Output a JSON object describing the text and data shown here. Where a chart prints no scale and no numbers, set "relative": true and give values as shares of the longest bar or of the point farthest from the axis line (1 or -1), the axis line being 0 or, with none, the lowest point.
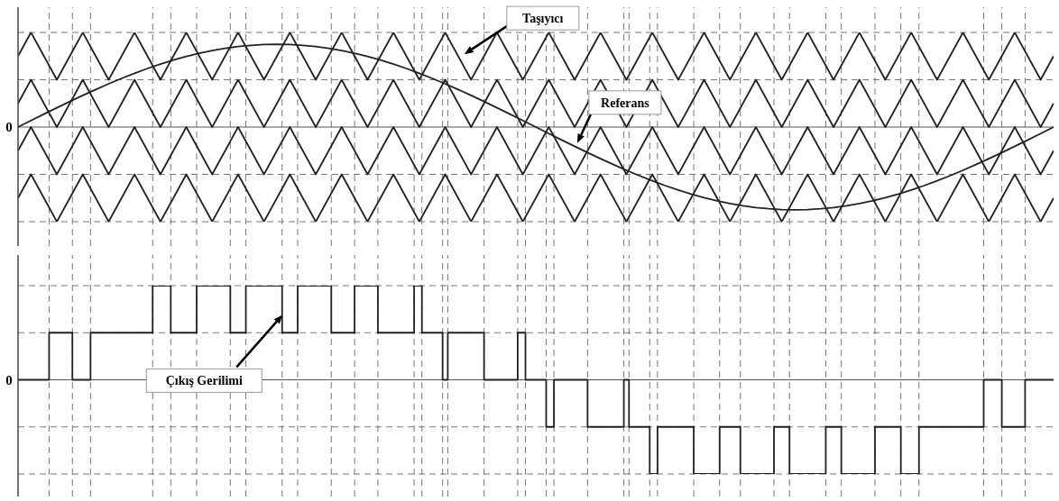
{
  "chart_data": [
    {
      "type": "line",
      "relative": true,
      "grid": true,
      "line_style": "solid",
      "marker": "none",
      "categories": [
        null,
        null,
        null,
        null,
        null,
        null,
        null,
        null,
        null,
        null,
        null,
        null,
        null,
        null,
        null,
        null,
        null,
        null,
        null,
        null,
        null,
        null,
        null,
        null,
        null,
        null,
        null,
        null,
        null,
        null,
        null,
        null,
        null,
        null,
        null,
        null,
        null,
        null,
        null,
        null,
        null,
        null,
        null,
        null,
        null,
        null,
        null,
        null,
        null,
        null,
        null,
        null,
        null,
        null,
        null,
        null,
        null,
        null,
        null,
        null,
        null,
        null,
        null,
        null,
        null,
        null,
        null,
        null,
        null,
        null,
        null,
        null,
        null,
        null,
        null,
        null,
        null,
        null,
        null,
        null,
        null
      ],
      "ref_lines": [
        {
          "axis": "y",
          "value": 0,
          "color": "#555555",
          "line_style": "solid"
        }
      ],
      "series": [
        {
          "color": "#222222",
          "values": [
            0.75,
            1,
            0.75,
            0.5,
            0.75,
            1,
            0.75,
            0.5,
            0.75,
            1,
            0.75,
            0.5,
            0.75,
            1,
            0.75,
            0.5,
            0.75,
            1,
            0.75,
            0.5,
            0.75,
            1,
            0.75,
            0.5,
            0.75,
            1,
            0.75,
            0.5,
            0.75,
            1,
            0.75,
            0.5,
            0.75,
            1,
            0.75,
            0.5,
            0.75,
            1,
            0.75,
            0.5,
            0.75,
            1,
            0.75,
            0.5,
            0.75,
            1,
            0.75,
            0.5,
            0.75,
            1,
            0.75,
            0.5,
            0.75,
            1,
            0.75,
            0.5,
            0.75,
            1,
            0.75,
            0.5,
            0.75,
            1,
            0.75,
            0.5,
            0.75,
            1,
            0.75,
            0.5,
            0.75,
            1,
            0.75,
            0.5,
            0.75,
            1,
            0.75,
            0.5,
            0.75,
            1,
            0.75,
            0.5,
            0.75
          ]
        },
        {
          "color": "#222222",
          "values": [
            0.25,
            0.5,
            0.25,
            0,
            0.25,
            0.5,
            0.25,
            0,
            0.25,
            0.5,
            0.25,
            0,
            0.25,
            0.5,
            0.25,
            0,
            0.25,
            0.5,
            0.25,
            0,
            0.25,
            0.5,
            0.25,
            0,
            0.25,
            0.5,
            0.25,
            0,
            0.25,
            0.5,
            0.25,
            0,
            0.25,
            0.5,
            0.25,
            0,
            0.25,
            0.5,
            0.25,
            0,
            0.25,
            0.5,
            0.25,
            0,
            0.25,
            0.5,
            null,
            0,
            null,
            0.5,
            0.25,
            0,
            0.25,
            0.5,
            0.25,
            0,
            0.25,
            0.5,
            0.25,
            0,
            0.25,
            0.5,
            0.25,
            0,
            0.25,
            0.5,
            0.25,
            0,
            0.25,
            0.5,
            0.25,
            0,
            0.25,
            0.5,
            0.25,
            0,
            0.25,
            0.5,
            0.25,
            0,
            0.25
          ]
        },
        {
          "color": "#222222",
          "values": [
            -0.25,
            0,
            -0.25,
            -0.5,
            -0.25,
            0,
            -0.25,
            -0.5,
            -0.25,
            0,
            -0.25,
            -0.5,
            -0.25,
            0,
            -0.25,
            -0.5,
            -0.25,
            0,
            -0.25,
            -0.5,
            -0.25,
            0,
            -0.25,
            -0.5,
            -0.25,
            0,
            -0.25,
            -0.5,
            -0.25,
            0,
            -0.25,
            -0.5,
            -0.25,
            0,
            -0.25,
            -0.5,
            -0.25,
            0,
            -0.25,
            -0.5,
            -0.25,
            0,
            -0.25,
            -0.5,
            -0.25,
            0,
            -0.25,
            -0.5,
            -0.25,
            0,
            -0.25,
            -0.5,
            -0.25,
            0,
            -0.25,
            -0.5,
            -0.25,
            0,
            -0.25,
            -0.5,
            -0.25,
            0,
            -0.25,
            -0.5,
            -0.25,
            0,
            -0.25,
            -0.5,
            -0.25,
            0,
            -0.25,
            -0.5,
            -0.25,
            0,
            -0.25,
            -0.5,
            -0.25,
            0,
            -0.25,
            -0.5,
            -0.25
          ]
        },
        {
          "color": "#222222",
          "values": [
            -0.75,
            -0.5,
            -0.75,
            -1,
            -0.75,
            -0.5,
            -0.75,
            -1,
            -0.75,
            -0.5,
            -0.75,
            -1,
            -0.75,
            -0.5,
            -0.75,
            -1,
            -0.75,
            -0.5,
            -0.75,
            -1,
            -0.75,
            -0.5,
            -0.75,
            -1,
            -0.75,
            -0.5,
            -0.75,
            -1,
            -0.75,
            -0.5,
            -0.75,
            -1,
            -0.75,
            -0.5,
            -0.75,
            -1,
            -0.75,
            -0.5,
            -0.75,
            -1,
            -0.75,
            -0.5,
            -0.75,
            -1,
            -0.75,
            -0.5,
            -0.75,
            -1,
            -0.75,
            -0.5,
            -0.75,
            -1,
            -0.75,
            -0.5,
            -0.75,
            -1,
            -0.75,
            -0.5,
            -0.75,
            -1,
            -0.75,
            -0.5,
            -0.75,
            -1,
            -0.75,
            -0.5,
            -0.75,
            -1,
            -0.75,
            -0.5,
            -0.75,
            -1,
            -0.75,
            -0.5,
            -0.75,
            -1,
            -0.75,
            -0.5,
            -0.75,
            -1,
            -0.75
          ]
        },
        {
          "color": "#222222",
          "values": [
            0,
            0.069,
            0.137,
            0.204,
            0.27,
            0.335,
            0.397,
            0.457,
            0.514,
            0.568,
            0.619,
            0.665,
            0.708,
            0.746,
            0.78,
            0.808,
            0.832,
            0.851,
            0.864,
            0.872,
            0.875,
            0.872,
            0.864,
            0.851,
            0.832,
            0.808,
            0.78,
            0.746,
            0.708,
            0.665,
            0.619,
            0.568,
            0.514,
            0.457,
            0.397,
            0.335,
            0.27,
            0.204,
            0.137,
            0.069,
            0,
            -0.069,
            -0.137,
            -0.204,
            -0.27,
            -0.335,
            -0.397,
            -0.457,
            -0.514,
            -0.568,
            -0.619,
            -0.665,
            -0.708,
            -0.746,
            -0.78,
            -0.808,
            -0.832,
            -0.851,
            -0.864,
            -0.872,
            -0.875,
            -0.872,
            -0.864,
            -0.851,
            -0.832,
            -0.808,
            -0.78,
            -0.746,
            -0.708,
            -0.665,
            -0.619,
            -0.568,
            -0.514,
            -0.457,
            -0.397,
            -0.335,
            -0.27,
            -0.204,
            -0.137,
            -0.069,
            0
          ]
        }
      ],
      "annotations": [
        "0",
        {
          "text": "Taşıyıcı",
          "y": 0.77
        },
        "Referans"
      ]
    },
    {
      "type": "step",
      "relative": true,
      "grid": true,
      "line_style": "solid",
      "marker": "none",
      "categories": [
        null,
        null,
        null,
        null,
        null,
        null,
        null,
        null,
        null,
        null,
        null,
        null,
        null,
        null,
        null,
        null,
        null,
        null,
        null,
        null,
        null,
        null,
        null,
        null,
        null,
        null,
        null,
        null,
        null,
        null,
        null,
        null,
        null,
        null,
        null,
        null,
        null,
        null,
        null,
        null,
        null,
        null,
        null,
        null,
        null,
        null,
        null,
        null,
        null,
        null,
        null,
        null,
        null,
        null,
        null,
        null,
        null,
        null,
        null,
        null,
        null,
        null,
        null,
        null,
        null,
        null,
        null,
        null,
        null,
        null,
        null,
        null,
        null,
        null,
        null,
        null,
        null,
        null,
        null,
        null,
        null,
        null,
        null,
        null,
        null,
        null,
        null,
        null,
        null,
        null,
        null,
        null,
        null,
        null,
        null,
        null,
        null,
        null,
        null,
        null,
        null,
        null,
        null,
        null,
        null,
        null,
        null,
        null,
        null,
        null,
        null,
        null,
        null,
        null,
        null,
        null,
        null,
        null,
        null,
        null,
        null,
        null,
        null,
        null,
        null,
        null,
        null,
        null,
        null,
        null,
        null,
        null,
        null,
        null,
        null,
        null,
        null,
        null,
        null,
        null,
        null,
        null,
        null,
        null,
        null,
        null,
        null,
        null,
        null,
        null,
        null,
        null,
        null,
        null,
        null,
        null,
        null,
        null,
        null,
        null,
        null,
        null,
        null,
        null,
        null,
        null,
        null,
        null,
        null,
        null,
        null,
        null,
        null,
        null,
        null,
        null,
        null,
        null,
        null,
        null,
        null,
        null,
        null,
        null,
        null,
        null,
        null,
        null,
        null,
        null,
        null,
        null,
        null,
        null,
        null,
        null,
        null,
        null,
        null,
        null,
        null,
        null,
        null,
        null,
        null,
        null,
        null,
        null,
        null,
        null,
        null,
        null,
        null,
        null,
        null,
        null,
        null,
        null,
        null,
        null,
        null,
        null,
        null,
        null,
        null,
        null,
        null,
        null,
        null,
        null,
        null,
        null,
        null,
        null,
        null,
        null,
        null,
        null,
        null,
        null,
        null,
        null,
        null,
        null,
        null,
        null,
        null,
        null,
        null,
        null,
        null,
        null,
        null,
        null,
        null,
        null,
        null,
        null,
        null,
        null,
        null,
        null,
        null,
        null,
        null,
        null,
        null,
        null,
        null,
        null,
        null,
        null,
        null,
        null,
        null,
        null,
        null,
        null,
        null,
        null,
        null,
        null,
        null,
        null,
        null,
        null,
        null,
        null,
        null,
        null,
        null,
        null,
        null,
        null,
        null,
        null,
        null,
        null,
        null,
        null,
        null,
        null,
        null,
        null,
        null,
        null,
        null,
        null,
        null,
        null,
        null,
        null,
        null,
        null,
        null,
        null,
        null,
        null,
        null,
        null,
        null,
        null,
        null,
        null,
        null,
        null,
        null,
        null,
        null,
        null,
        null,
        null,
        null,
        null,
        null,
        null,
        null,
        null,
        null,
        null,
        null,
        null,
        null,
        null,
        null,
        null,
        null,
        null,
        null,
        null,
        null,
        null,
        null,
        null,
        null,
        null,
        null,
        null,
        null,
        null,
        null,
        null,
        null,
        null,
        null,
        null,
        null,
        null,
        null,
        null,
        null,
        null,
        null,
        null,
        null,
        null,
        null,
        null,
        null,
        null,
        null,
        null,
        null,
        null,
        null,
        null,
        null,
        null,
        null,
        null,
        null,
        null,
        null,
        null,
        null,
        null,
        null,
        null,
        null,
        null,
        null
      ],
      "ref_lines": [
        {
          "axis": "y",
          "value": 0,
          "color": "#555555",
          "line_style": "solid"
        }
      ],
      "series": [
        {
          "color": "#222222",
          "values": [
            0,
            0,
            0,
            0,
            0,
            0,
            0,
            0,
            0,
            0,
            0,
            0,
            0.5,
            0.5,
            0.5,
            0.5,
            0.5,
            0.5,
            0.5,
            0.5,
            0.5,
            0,
            0,
            0,
            0,
            0,
            0,
            0,
            0.5,
            0.5,
            0.5,
            0.5,
            0.5,
            0.5,
            0.5,
            0.5,
            0.5,
            0.5,
            0.5,
            0.5,
            0.5,
            0.5,
            0.5,
            0.5,
            0.5,
            0.5,
            0.5,
            0.5,
            0.5,
            0.5,
            0.5,
            0.5,
            1,
            1,
            1,
            1,
            1,
            1,
            1,
            0.5,
            0.5,
            0.5,
            0.5,
            0.5,
            0.5,
            0.5,
            0.5,
            0.5,
            0.5,
            1,
            1,
            1,
            1,
            1,
            1,
            1,
            1,
            1,
            1,
            1,
            1,
            1,
            0.5,
            0.5,
            0.5,
            0.5,
            0.5,
            0.5,
            1,
            1,
            1,
            1,
            1,
            1,
            1,
            1,
            1,
            1,
            1,
            1,
            1,
            1,
            0.5,
            0.5,
            0.5,
            0.5,
            0.5,
            0.5,
            1,
            1,
            1,
            1,
            1,
            1,
            1,
            1,
            1,
            1,
            1,
            1,
            1,
            0.5,
            0.5,
            0.5,
            0.5,
            0.5,
            0.5,
            0.5,
            0.5,
            0.5,
            1,
            1,
            1,
            1,
            1,
            1,
            1,
            1,
            1,
            0.5,
            0.5,
            0.5,
            0.5,
            0.5,
            0.5,
            0.5,
            0.5,
            0.5,
            0.5,
            0.5,
            0.5,
            0.5,
            0.5,
            1,
            1,
            1,
            0.5,
            0.5,
            0.5,
            0.5,
            0.5,
            0.5,
            0.5,
            0.5,
            0,
            0,
            0.5,
            0.5,
            0.5,
            0.5,
            0.5,
            0.5,
            0.5,
            0.5,
            0.5,
            0.5,
            0.5,
            0.5,
            0.5,
            0.5,
            0,
            0,
            0,
            0,
            0,
            0,
            0,
            0,
            0,
            0,
            0,
            0,
            0,
            0.5,
            0.5,
            0.5,
            0,
            0,
            0,
            0,
            0,
            0,
            0,
            0,
            -0.5,
            -0.5,
            -0.5,
            0,
            0,
            0,
            0,
            0,
            0,
            0,
            0,
            0,
            0,
            0,
            0,
            0,
            -0.5,
            -0.5,
            -0.5,
            -0.5,
            -0.5,
            -0.5,
            -0.5,
            -0.5,
            -0.5,
            -0.5,
            -0.5,
            -0.5,
            -0.5,
            -0.5,
            0,
            0,
            -0.5,
            -0.5,
            -0.5,
            -0.5,
            -0.5,
            -0.5,
            -0.5,
            -0.5,
            -1,
            -1,
            -1,
            -0.5,
            -0.5,
            -0.5,
            -0.5,
            -0.5,
            -0.5,
            -0.5,
            -0.5,
            -0.5,
            -0.5,
            -0.5,
            -0.5,
            -0.5,
            -0.5,
            -1,
            -1,
            -1,
            -1,
            -1,
            -1,
            -1,
            -1,
            -1,
            -1,
            -0.5,
            -0.5,
            -0.5,
            -0.5,
            -0.5,
            -0.5,
            -0.5,
            -0.5,
            -1,
            -1,
            -1,
            -1,
            -1,
            -1,
            -1,
            -1,
            -1,
            -1,
            -1,
            -1,
            -1,
            -0.5,
            -0.5,
            -0.5,
            -0.5,
            -0.5,
            -0.5,
            -1,
            -1,
            -1,
            -1,
            -1,
            -1,
            -1,
            -1,
            -1,
            -1,
            -1,
            -1,
            -1,
            -1,
            -0.5,
            -0.5,
            -0.5,
            -0.5,
            -0.5,
            -0.5,
            -1,
            -1,
            -1,
            -1,
            -1,
            -1,
            -1,
            -1,
            -1,
            -1,
            -1,
            -1,
            -1,
            -0.5,
            -0.5,
            -0.5,
            -0.5,
            -0.5,
            -0.5,
            -0.5,
            -0.5,
            -0.5,
            -0.5,
            -1,
            -1,
            -1,
            -1,
            -1,
            -1,
            -1,
            -0.5,
            -0.5,
            -0.5,
            -0.5,
            -0.5,
            -0.5,
            -0.5,
            -0.5,
            -0.5,
            -0.5,
            -0.5,
            -0.5,
            -0.5,
            -0.5,
            -0.5,
            -0.5,
            -0.5,
            -0.5,
            -0.5,
            -0.5,
            -0.5,
            -0.5,
            -0.5,
            -0.5,
            -0.5,
            0,
            0,
            0,
            0,
            0,
            0,
            0,
            -0.5,
            -0.5,
            -0.5,
            -0.5,
            -0.5,
            -0.5,
            -0.5,
            -0.5,
            -0.5,
            0,
            0,
            0,
            0,
            0,
            0,
            0,
            0,
            0,
            0,
            0,
            0
          ]
        }
      ],
      "annotations": [
        "0",
        "Çıkış Gerilimi"
      ]
    }
  ]
}
